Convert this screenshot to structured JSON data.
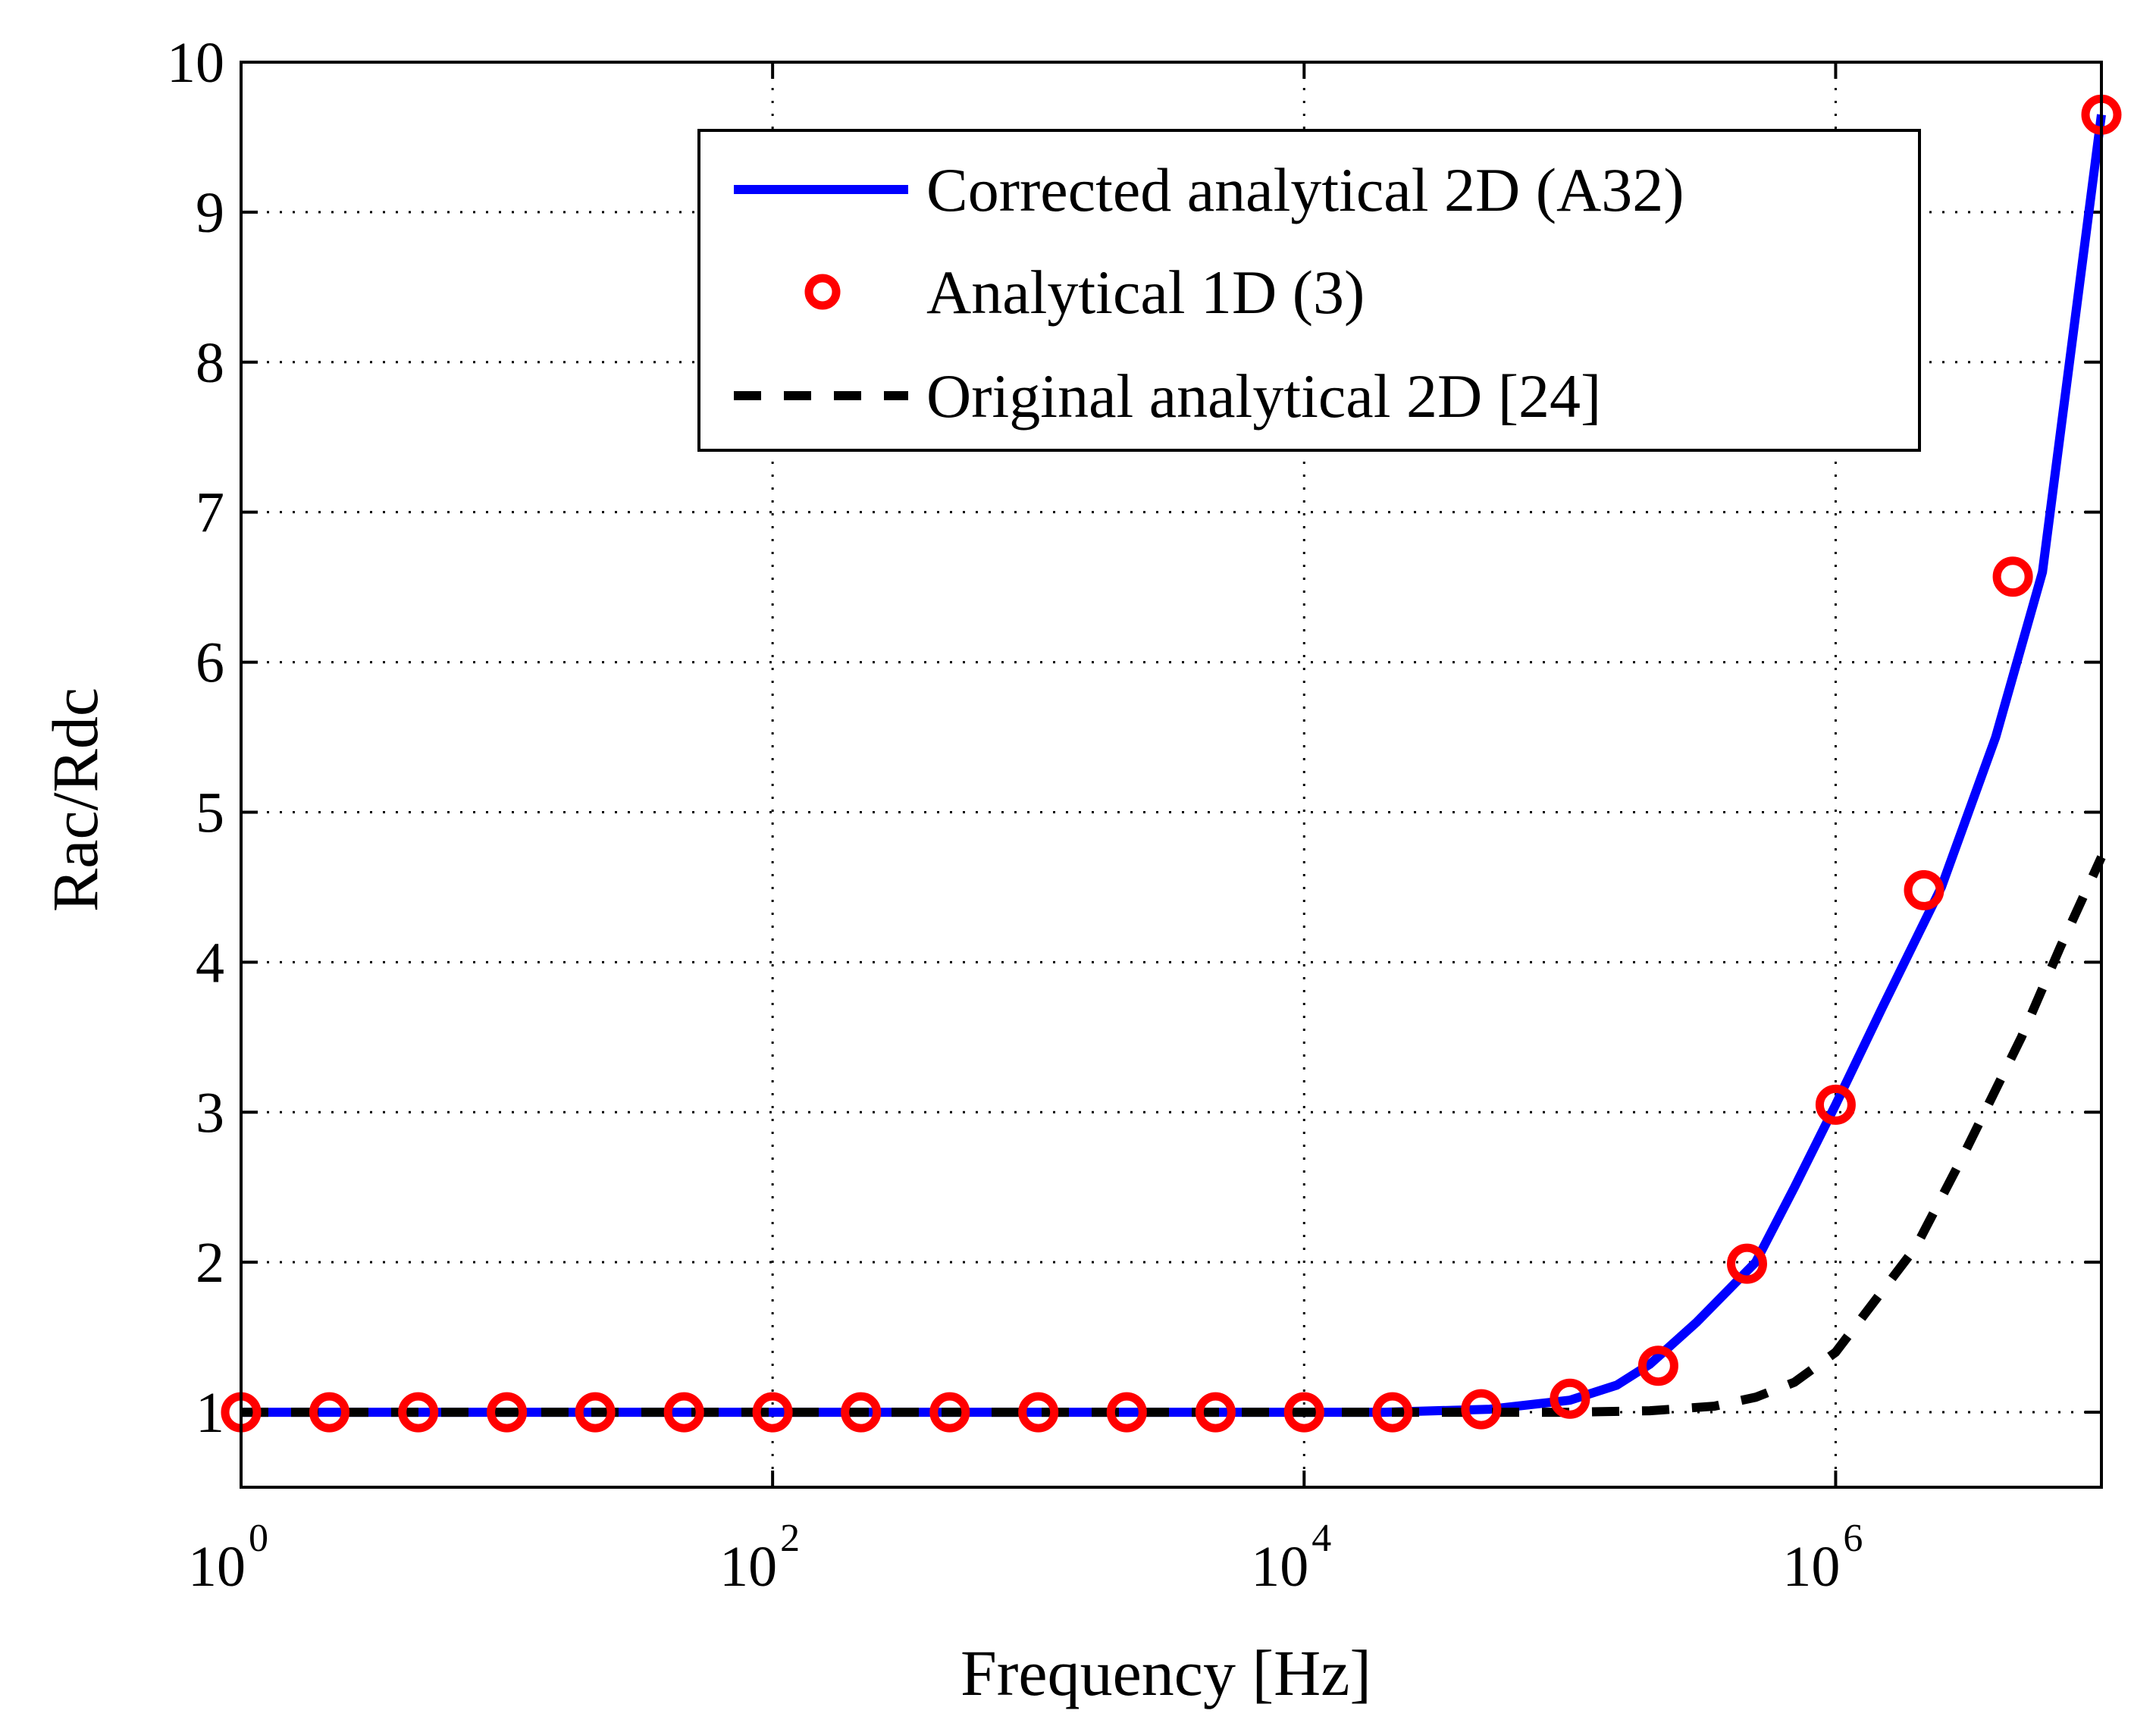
{
  "chart_data": {
    "type": "line",
    "xscale": "log",
    "xlim": [
      1,
      10000000
    ],
    "ylim": [
      0.5,
      10
    ],
    "xlabel": "Frequency [Hz]",
    "ylabel": "Rac/Rdc",
    "grid": true,
    "legend_position": "top-right",
    "x_ticks": [
      {
        "base": "10",
        "exp": "0",
        "value": 1
      },
      {
        "base": "10",
        "exp": "2",
        "value": 100
      },
      {
        "base": "10",
        "exp": "4",
        "value": 10000
      },
      {
        "base": "10",
        "exp": "6",
        "value": 1000000
      }
    ],
    "y_ticks": [
      "1",
      "2",
      "3",
      "4",
      "5",
      "6",
      "7",
      "8",
      "9",
      "10"
    ],
    "series": [
      {
        "name": "Corrected analytical 2D (A32)",
        "style": "solid",
        "color": "#0000ff",
        "x": [
          1,
          10,
          100,
          1000,
          10000,
          20000,
          50000,
          100000,
          150000,
          200000,
          300000,
          500000,
          700000,
          1000000,
          1500000,
          2500000,
          4000000,
          6000000,
          10000000
        ],
        "values": [
          1.0,
          1.0,
          1.0,
          1.0,
          1.0,
          1.0,
          1.02,
          1.08,
          1.18,
          1.32,
          1.6,
          2.0,
          2.5,
          3.05,
          3.7,
          4.5,
          5.5,
          6.6,
          9.65
        ]
      },
      {
        "name": "Analytical 1D (3)",
        "style": "circle-markers",
        "color": "#ff0000",
        "x": [
          1,
          2.15,
          4.64,
          10,
          21.5,
          46.4,
          100,
          215,
          464,
          1000,
          2150,
          4640,
          10000,
          21500,
          46400,
          100000,
          215000,
          464000,
          1000000,
          2150000,
          4640000,
          10000000
        ],
        "values": [
          1.0,
          1.0,
          1.0,
          1.0,
          1.0,
          1.0,
          1.0,
          1.0,
          1.0,
          1.0,
          1.0,
          1.0,
          1.0,
          1.0,
          1.02,
          1.09,
          1.31,
          1.99,
          3.05,
          4.48,
          6.57,
          9.65
        ]
      },
      {
        "name": "Original analytical 2D [24]",
        "style": "dashed",
        "color": "#000000",
        "x": [
          1,
          10,
          100,
          1000,
          10000,
          50000,
          100000,
          200000,
          350000,
          500000,
          700000,
          1000000,
          2000000,
          3000000,
          5000000,
          7000000,
          10000000
        ],
        "values": [
          1.0,
          1.0,
          1.0,
          1.0,
          1.0,
          1.0,
          1.0,
          1.01,
          1.04,
          1.1,
          1.2,
          1.4,
          2.1,
          2.7,
          3.5,
          4.1,
          4.7
        ]
      }
    ]
  }
}
